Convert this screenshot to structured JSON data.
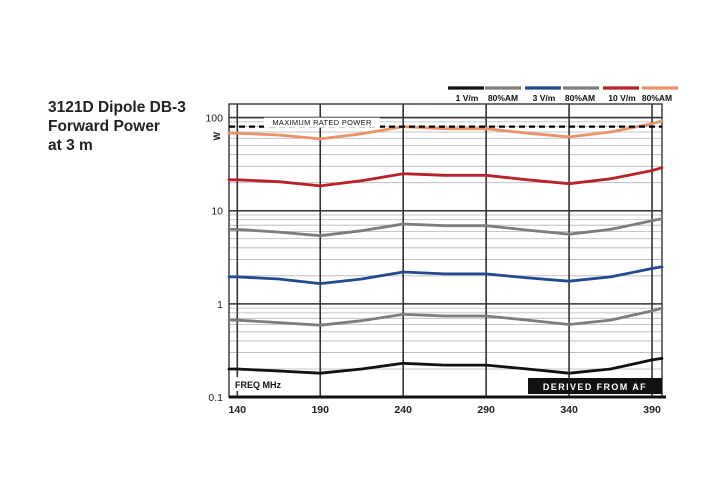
{
  "title_lines": [
    "3121D Dipole DB-3",
    "Forward Power",
    "at 3 m"
  ],
  "chart_data": {
    "type": "line",
    "title": "3121D Dipole DB-3 Forward Power at 3 m",
    "xlabel": "FREQ  MHz",
    "ylabel": "W",
    "x_ticks": [
      140,
      190,
      240,
      290,
      340,
      390
    ],
    "y_ticks": [
      0.1,
      1,
      10,
      100
    ],
    "y_tick_labels": [
      "0.1",
      "1",
      "10",
      "100"
    ],
    "xlim": [
      135,
      396
    ],
    "ylim": [
      0.1,
      140
    ],
    "yscale": "log",
    "grid": true,
    "legend_position": "top-right",
    "reference_line": {
      "label": "MAXIMUM RATED POWER",
      "value": 80,
      "color": "#000000"
    },
    "footer_badge": "DERIVED FROM AF",
    "x": [
      135,
      140,
      165,
      190,
      215,
      240,
      265,
      290,
      315,
      340,
      365,
      390,
      396
    ],
    "series": [
      {
        "name": "1 V/m",
        "color": "#111111",
        "values": [
          0.2,
          0.2,
          0.19,
          0.18,
          0.2,
          0.23,
          0.22,
          0.22,
          0.2,
          0.18,
          0.2,
          0.25,
          0.26
        ]
      },
      {
        "name": "80%AM",
        "color": "#7d7d7d",
        "values": [
          0.67,
          0.67,
          0.63,
          0.59,
          0.66,
          0.77,
          0.74,
          0.74,
          0.67,
          0.6,
          0.67,
          0.84,
          0.9
        ]
      },
      {
        "name": "3 V/m",
        "color": "#24498e",
        "values": [
          1.95,
          1.95,
          1.85,
          1.65,
          1.85,
          2.2,
          2.1,
          2.1,
          1.9,
          1.75,
          1.95,
          2.4,
          2.5
        ]
      },
      {
        "name": "80%AM",
        "color": "#7d7d7d",
        "values": [
          6.3,
          6.3,
          5.9,
          5.4,
          6.1,
          7.2,
          6.9,
          6.9,
          6.2,
          5.6,
          6.3,
          7.8,
          8.2
        ]
      },
      {
        "name": "10 V/m",
        "color": "#b8222a",
        "values": [
          21.5,
          21.5,
          20.5,
          18.5,
          21,
          25,
          24,
          24,
          21.5,
          19.5,
          22,
          27,
          29
        ]
      },
      {
        "name": "80%AM",
        "color": "#e9936a",
        "values": [
          68,
          68,
          65,
          59,
          67,
          80,
          76,
          76,
          68,
          62,
          70,
          86,
          92
        ]
      }
    ]
  }
}
